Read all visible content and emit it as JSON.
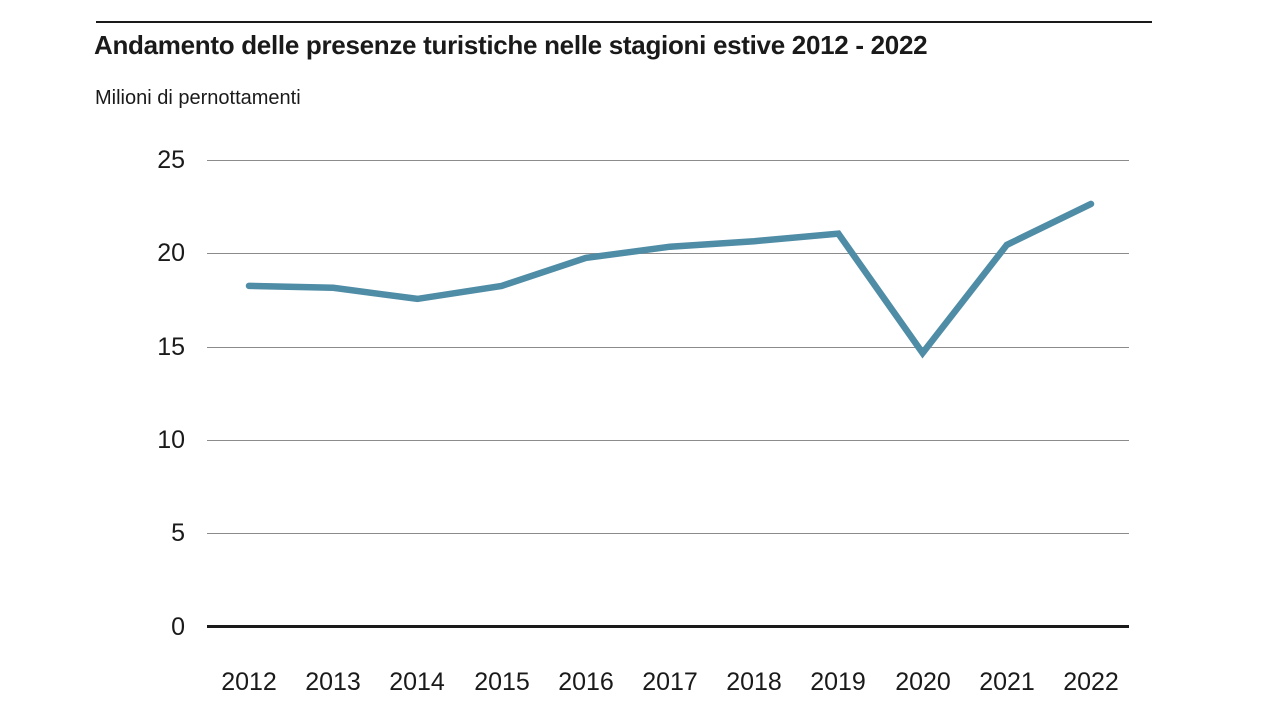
{
  "chart_data": {
    "type": "line",
    "title": "Andamento delle presenze turistiche nelle stagioni estive 2012 - 2022",
    "subtitle": "Milioni di pernottamenti",
    "xlabel": "",
    "ylabel": "Milioni di pernottamenti",
    "categories": [
      "2012",
      "2013",
      "2014",
      "2015",
      "2016",
      "2017",
      "2018",
      "2019",
      "2020",
      "2021",
      "2022"
    ],
    "values": [
      18.3,
      18.2,
      17.6,
      18.3,
      19.8,
      20.4,
      20.7,
      21.1,
      14.7,
      20.5,
      22.7
    ],
    "yticks": [
      25,
      20,
      15,
      10,
      5,
      0
    ],
    "ylim": [
      0,
      25
    ],
    "grid": "horizontal",
    "legend": "none",
    "line_color": "#4f8ca6",
    "grid_color": "#8c8c8c",
    "axis_color": "#1a1a1a",
    "text_color": "#1a1a1a",
    "background": "#ffffff"
  }
}
